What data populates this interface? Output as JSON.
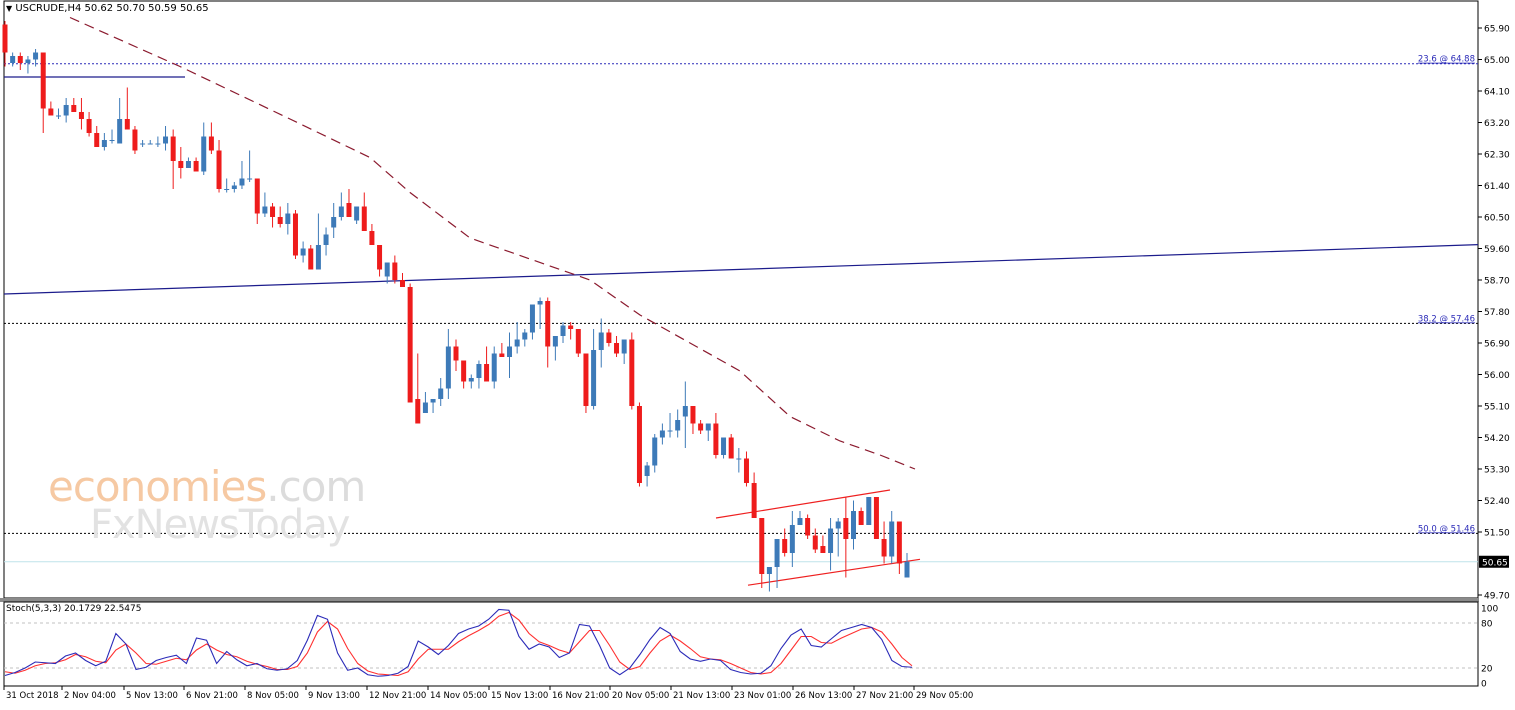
{
  "header": {
    "symbol": "USCRUDE",
    "timeframe": "H4",
    "ohlc_label": "USCRUDE,H4  50.62 50.70 50.59 50.65",
    "dropdown_icon": "triangle-down-icon"
  },
  "indicator": {
    "label": "Stoch(5,3,3) 20.1729 22.5475",
    "main_color": "#2b2bb8",
    "signal_color": "#ff3030"
  },
  "watermark": {
    "line1_main": "economies",
    "line1_suffix": ".com",
    "line2": "FxNewsToday"
  },
  "colors": {
    "bull": "#3d7ab8",
    "bear": "#ee1c1c",
    "ma": "#8b1a2e",
    "trend_blue": "#1c1c8c",
    "fib_label": "#2b2bb8",
    "channel": "#ee2020",
    "current_price_line": "#bfe3ea",
    "current_price_bg": "#000000",
    "current_price_fg": "#ffffff"
  },
  "chart_data": {
    "type": "candlestick",
    "title": "USCRUDE,H4",
    "ohlc_current": {
      "open": 50.62,
      "high": 50.7,
      "low": 50.59,
      "close": 50.65
    },
    "y_axis": {
      "range": [
        49.7,
        65.9
      ],
      "ticks": [
        "65.90",
        "65.00",
        "64.10",
        "63.20",
        "62.30",
        "61.40",
        "60.50",
        "59.60",
        "58.70",
        "57.80",
        "56.90",
        "56.00",
        "55.10",
        "54.20",
        "53.30",
        "52.40",
        "51.50",
        "50.65",
        "49.70"
      ],
      "current_price": "50.65"
    },
    "x_axis": {
      "ticks": [
        "31 Oct 2018",
        "2 Nov 04:00",
        "5 Nov 13:00",
        "6 Nov 21:00",
        "8 Nov 05:00",
        "9 Nov 13:00",
        "12 Nov 21:00",
        "14 Nov 05:00",
        "15 Nov 13:00",
        "16 Nov 21:00",
        "20 Nov 05:00",
        "21 Nov 13:00",
        "23 Nov 01:00",
        "26 Nov 13:00",
        "27 Nov 21:00",
        "29 Nov 05:00"
      ]
    },
    "fibonacci_levels": [
      {
        "label": "23.6 @ 64.88",
        "price": 64.88
      },
      {
        "label": "38.2 @ 57.46",
        "price": 57.46
      },
      {
        "label": "50.0 @ 51.46",
        "price": 51.46
      }
    ],
    "candles": [
      [
        66.0,
        66.1,
        64.8,
        65.2
      ],
      [
        64.9,
        65.2,
        64.8,
        65.1
      ],
      [
        65.1,
        65.2,
        64.7,
        64.9
      ],
      [
        64.9,
        65.1,
        64.6,
        65.0
      ],
      [
        65.0,
        65.3,
        64.8,
        65.2
      ],
      [
        65.2,
        65.2,
        62.9,
        63.6
      ],
      [
        63.6,
        63.8,
        63.4,
        63.4
      ],
      [
        63.4,
        63.6,
        63.3,
        63.4
      ],
      [
        63.4,
        63.9,
        63.2,
        63.7
      ],
      [
        63.7,
        63.9,
        63.5,
        63.5
      ],
      [
        63.5,
        63.9,
        63.0,
        63.3
      ],
      [
        63.3,
        63.5,
        62.8,
        62.9
      ],
      [
        62.9,
        63.1,
        62.7,
        62.5
      ],
      [
        62.5,
        62.9,
        62.4,
        62.7
      ],
      [
        62.7,
        63.0,
        62.6,
        62.7
      ],
      [
        62.6,
        63.9,
        62.6,
        63.3
      ],
      [
        63.3,
        64.2,
        63.0,
        63.0
      ],
      [
        63.0,
        63.1,
        62.3,
        62.4
      ],
      [
        62.6,
        62.7,
        62.5,
        62.6
      ],
      [
        62.6,
        62.7,
        62.6,
        62.6
      ],
      [
        62.6,
        62.8,
        62.5,
        62.6
      ],
      [
        62.6,
        63.1,
        62.4,
        62.8
      ],
      [
        62.8,
        63.0,
        61.3,
        62.1
      ],
      [
        62.1,
        62.5,
        61.6,
        61.9
      ],
      [
        61.9,
        62.2,
        61.9,
        62.1
      ],
      [
        62.1,
        62.2,
        61.9,
        61.8
      ],
      [
        61.8,
        63.2,
        61.7,
        62.8
      ],
      [
        62.8,
        63.2,
        62.3,
        62.4
      ],
      [
        62.4,
        62.7,
        61.2,
        61.3
      ],
      [
        61.3,
        61.6,
        61.2,
        61.3
      ],
      [
        61.3,
        61.5,
        61.2,
        61.4
      ],
      [
        61.4,
        62.1,
        61.3,
        61.6
      ],
      [
        61.6,
        62.4,
        61.5,
        61.6
      ],
      [
        61.6,
        61.6,
        60.3,
        60.6
      ],
      [
        60.6,
        61.2,
        60.5,
        60.8
      ],
      [
        60.8,
        60.9,
        60.2,
        60.5
      ],
      [
        60.5,
        60.8,
        60.2,
        60.3
      ],
      [
        60.3,
        60.9,
        60.0,
        60.6
      ],
      [
        60.6,
        60.7,
        59.3,
        59.4
      ],
      [
        59.4,
        59.8,
        59.2,
        59.6
      ],
      [
        59.6,
        59.7,
        59.2,
        59.0
      ],
      [
        59.0,
        60.6,
        59.0,
        59.7
      ],
      [
        59.7,
        60.2,
        59.4,
        60.0
      ],
      [
        60.2,
        60.9,
        59.9,
        60.5
      ],
      [
        60.5,
        61.2,
        60.4,
        60.8
      ],
      [
        60.9,
        61.3,
        60.6,
        60.5
      ],
      [
        60.4,
        60.8,
        60.3,
        60.8
      ],
      [
        60.8,
        61.2,
        60.2,
        60.1
      ],
      [
        60.1,
        60.3,
        59.8,
        59.7
      ],
      [
        59.7,
        59.7,
        58.8,
        59.0
      ],
      [
        58.8,
        59.1,
        58.6,
        59.2
      ],
      [
        59.2,
        59.4,
        58.6,
        58.7
      ],
      [
        58.7,
        58.9,
        58.5,
        58.5
      ],
      [
        58.5,
        58.6,
        55.3,
        55.2
      ],
      [
        55.3,
        56.6,
        54.7,
        54.6
      ],
      [
        54.9,
        55.5,
        54.9,
        55.2
      ],
      [
        55.2,
        55.3,
        54.9,
        55.3
      ],
      [
        55.3,
        55.9,
        55.1,
        55.6
      ],
      [
        55.6,
        57.3,
        55.3,
        56.8
      ],
      [
        56.8,
        57.0,
        56.1,
        56.4
      ],
      [
        56.4,
        56.4,
        55.6,
        55.8
      ],
      [
        55.8,
        56.0,
        55.6,
        55.9
      ],
      [
        55.9,
        56.4,
        55.6,
        56.3
      ],
      [
        56.3,
        56.8,
        55.8,
        55.8
      ],
      [
        55.8,
        56.8,
        55.6,
        56.6
      ],
      [
        56.6,
        56.9,
        56.5,
        56.5
      ],
      [
        56.5,
        57.2,
        55.9,
        56.8
      ],
      [
        56.8,
        57.5,
        56.6,
        57.0
      ],
      [
        57.0,
        57.3,
        56.8,
        57.2
      ],
      [
        57.2,
        58.0,
        57.0,
        58.0
      ],
      [
        58.0,
        58.2,
        57.3,
        58.1
      ],
      [
        58.1,
        58.2,
        56.2,
        56.8
      ],
      [
        56.8,
        57.1,
        56.4,
        57.1
      ],
      [
        57.1,
        57.5,
        56.9,
        57.4
      ],
      [
        57.4,
        57.5,
        57.0,
        57.3
      ],
      [
        57.3,
        57.3,
        56.5,
        56.6
      ],
      [
        56.6,
        56.6,
        54.9,
        55.1
      ],
      [
        55.1,
        57.3,
        55.0,
        56.7
      ],
      [
        56.7,
        57.6,
        56.2,
        57.2
      ],
      [
        57.2,
        57.3,
        56.8,
        56.9
      ],
      [
        56.9,
        57.1,
        56.5,
        56.6
      ],
      [
        56.6,
        57.0,
        56.3,
        57.0
      ],
      [
        57.0,
        57.2,
        55.0,
        55.1
      ],
      [
        55.1,
        55.2,
        52.8,
        52.9
      ],
      [
        53.1,
        53.5,
        52.8,
        53.4
      ],
      [
        53.4,
        54.3,
        53.2,
        54.2
      ],
      [
        54.2,
        54.6,
        54.0,
        54.4
      ],
      [
        54.4,
        54.9,
        54.2,
        54.4
      ],
      [
        54.4,
        55.0,
        54.2,
        54.7
      ],
      [
        54.8,
        55.8,
        53.9,
        55.1
      ],
      [
        55.1,
        55.1,
        54.3,
        54.6
      ],
      [
        54.6,
        54.7,
        54.3,
        54.4
      ],
      [
        54.4,
        54.6,
        54.1,
        54.6
      ],
      [
        54.6,
        54.9,
        53.6,
        53.7
      ],
      [
        53.7,
        54.2,
        53.6,
        54.2
      ],
      [
        54.2,
        54.3,
        53.7,
        53.6
      ],
      [
        53.6,
        53.9,
        53.2,
        53.6
      ],
      [
        53.6,
        53.8,
        52.8,
        52.9
      ],
      [
        52.9,
        53.2,
        51.9,
        51.9
      ],
      [
        51.9,
        51.9,
        49.9,
        50.3
      ],
      [
        50.3,
        50.5,
        49.8,
        50.5
      ],
      [
        50.5,
        51.1,
        49.9,
        51.3
      ],
      [
        51.3,
        51.6,
        50.8,
        50.9
      ],
      [
        50.9,
        52.1,
        50.5,
        51.7
      ],
      [
        51.7,
        52.1,
        51.7,
        51.9
      ],
      [
        51.9,
        52.0,
        51.3,
        51.4
      ],
      [
        51.4,
        51.6,
        50.9,
        51.0
      ],
      [
        51.1,
        51.4,
        50.9,
        50.9
      ],
      [
        50.9,
        51.9,
        50.4,
        51.6
      ],
      [
        51.6,
        51.9,
        50.8,
        51.8
      ],
      [
        51.9,
        52.5,
        50.2,
        51.3
      ],
      [
        51.3,
        52.4,
        51.0,
        52.1
      ],
      [
        52.1,
        52.2,
        51.7,
        51.7
      ],
      [
        51.7,
        52.5,
        51.7,
        52.5
      ],
      [
        52.5,
        52.5,
        51.6,
        51.3
      ],
      [
        51.3,
        51.8,
        50.6,
        50.8
      ],
      [
        50.8,
        52.1,
        50.6,
        51.8
      ],
      [
        51.8,
        51.8,
        50.3,
        50.6
      ],
      [
        50.2,
        50.9,
        50.3,
        50.65
      ]
    ],
    "moving_average": {
      "style": "dashed",
      "points": [
        [
          70,
          66.2
        ],
        [
          180,
          64.8
        ],
        [
          290,
          63.3
        ],
        [
          370,
          62.2
        ],
        [
          410,
          61.2
        ],
        [
          470,
          59.9
        ],
        [
          530,
          59.3
        ],
        [
          590,
          58.7
        ],
        [
          640,
          57.7
        ],
        [
          690,
          56.9
        ],
        [
          740,
          56.1
        ],
        [
          790,
          54.8
        ],
        [
          840,
          54.1
        ],
        [
          880,
          53.7
        ],
        [
          915,
          53.3
        ]
      ]
    },
    "trendlines": [
      {
        "name": "horizontal-blue-short",
        "points": [
          [
            4,
            64.5
          ],
          [
            185,
            64.5
          ]
        ]
      },
      {
        "name": "rising-blue-long",
        "points": [
          [
            4,
            58.3
          ],
          [
            1478,
            59.71
          ]
        ]
      },
      {
        "name": "channel-upper",
        "points": [
          [
            716,
            51.9
          ],
          [
            890,
            52.7
          ]
        ]
      },
      {
        "name": "channel-lower",
        "points": [
          [
            748,
            49.98
          ],
          [
            920,
            50.72
          ]
        ]
      }
    ],
    "stochastic": {
      "params": "5,3,3",
      "main_value": 20.1729,
      "signal_value": 22.5475,
      "levels": [
        80,
        20
      ],
      "y_ticks": [
        "100",
        "80",
        "20",
        "0"
      ],
      "main": [
        10,
        14,
        20,
        28,
        27,
        26,
        36,
        40,
        30,
        23,
        29,
        66,
        52,
        18,
        21,
        30,
        34,
        37,
        26,
        60,
        57,
        26,
        42,
        31,
        23,
        26,
        19,
        17,
        19,
        30,
        57,
        90,
        85,
        40,
        17,
        20,
        11,
        9,
        10,
        13,
        22,
        56,
        48,
        38,
        50,
        66,
        72,
        76,
        85,
        98,
        97,
        62,
        45,
        52,
        48,
        34,
        40,
        78,
        76,
        50,
        20,
        11,
        20,
        38,
        58,
        74,
        66,
        42,
        32,
        29,
        32,
        30,
        18,
        14,
        12,
        13,
        23,
        46,
        64,
        72,
        50,
        48,
        59,
        70,
        74,
        78,
        74,
        58,
        30,
        22,
        21
      ],
      "signal": [
        15,
        13,
        17,
        23,
        26,
        27,
        31,
        38,
        35,
        29,
        27,
        44,
        52,
        40,
        26,
        25,
        29,
        33,
        31,
        44,
        52,
        44,
        38,
        35,
        29,
        25,
        22,
        18,
        18,
        22,
        40,
        68,
        82,
        72,
        46,
        26,
        16,
        12,
        11,
        10,
        15,
        32,
        45,
        45,
        45,
        55,
        63,
        70,
        78,
        89,
        94,
        84,
        66,
        55,
        50,
        44,
        40,
        55,
        70,
        70,
        50,
        28,
        18,
        22,
        40,
        56,
        64,
        56,
        46,
        35,
        32,
        31,
        26,
        20,
        14,
        12,
        14,
        26,
        44,
        62,
        62,
        54,
        53,
        60,
        66,
        72,
        74,
        68,
        52,
        34,
        23
      ]
    }
  }
}
